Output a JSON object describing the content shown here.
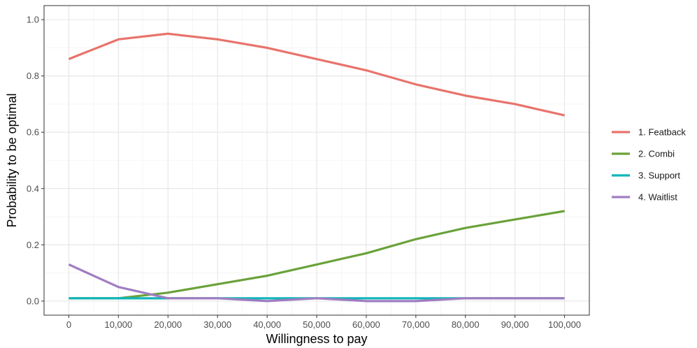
{
  "chart_data": {
    "type": "line",
    "title": "",
    "xlabel": "Willingness to pay",
    "ylabel": "Probability to be optimal",
    "x": [
      0,
      10000,
      20000,
      30000,
      40000,
      50000,
      60000,
      70000,
      80000,
      90000,
      100000
    ],
    "x_tick_labels": [
      "0",
      "10,000",
      "20,000",
      "30,000",
      "40,000",
      "50,000",
      "60,000",
      "70,000",
      "80,000",
      "90,000",
      "100,000"
    ],
    "y_ticks": [
      0.0,
      0.2,
      0.4,
      0.6,
      0.8,
      1.0
    ],
    "y_tick_labels": [
      "0.0",
      "0.2",
      "0.4",
      "0.6",
      "0.8",
      "1.0"
    ],
    "xlim": [
      -5000,
      105000
    ],
    "ylim": [
      -0.05,
      1.05
    ],
    "grid": true,
    "legend_position": "right",
    "series": [
      {
        "name": "1. Featback",
        "color": "#E8736C",
        "values": [
          0.86,
          0.93,
          0.95,
          0.93,
          0.9,
          0.86,
          0.82,
          0.77,
          0.73,
          0.7,
          0.66
        ]
      },
      {
        "name": "2. Combi",
        "color": "#6AA23A",
        "values": [
          0.01,
          0.01,
          0.03,
          0.06,
          0.09,
          0.13,
          0.17,
          0.22,
          0.26,
          0.29,
          0.32
        ]
      },
      {
        "name": "3. Support",
        "color": "#12B5BA",
        "values": [
          0.01,
          0.01,
          0.01,
          0.01,
          0.01,
          0.01,
          0.01,
          0.01,
          0.01,
          0.01,
          0.01
        ]
      },
      {
        "name": "4. Waitlist",
        "color": "#A07DC1",
        "values": [
          0.13,
          0.05,
          0.01,
          0.01,
          0.0,
          0.01,
          0.0,
          0.0,
          0.01,
          0.01,
          0.01
        ]
      }
    ]
  }
}
